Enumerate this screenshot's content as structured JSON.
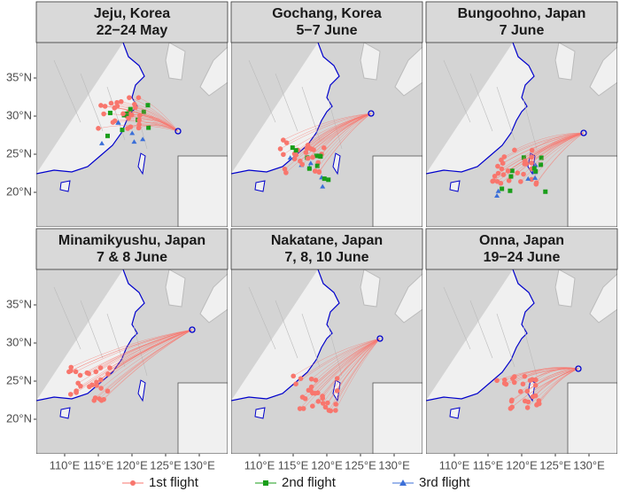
{
  "panels": [
    {
      "title": [
        "Jeju, Korea",
        "22−24 May"
      ]
    },
    {
      "title": [
        "Gochang, Korea",
        "5−7 June"
      ]
    },
    {
      "title": [
        "Bungoohno, Japan",
        "7 June"
      ]
    },
    {
      "title": [
        "Minamikyushu, Japan",
        "7 & 8 June"
      ]
    },
    {
      "title": [
        "Nakatane, Japan",
        "7, 8, 10 June"
      ]
    },
    {
      "title": [
        "Onna, Japan",
        "19−24 June"
      ]
    }
  ],
  "y_axis": {
    "ticks": [
      "35°N",
      "30°N",
      "25°N",
      "20°N"
    ]
  },
  "x_axis": {
    "ticks": [
      "110°E",
      "115°E",
      "120°E",
      "125°E",
      "130°E"
    ]
  },
  "legend": [
    {
      "name": "1st flight",
      "color": "#f8766d"
    },
    {
      "name": "2nd flight",
      "color": "#1a9e1a"
    },
    {
      "name": "3rd flight",
      "color": "#3b6fd8"
    }
  ]
}
